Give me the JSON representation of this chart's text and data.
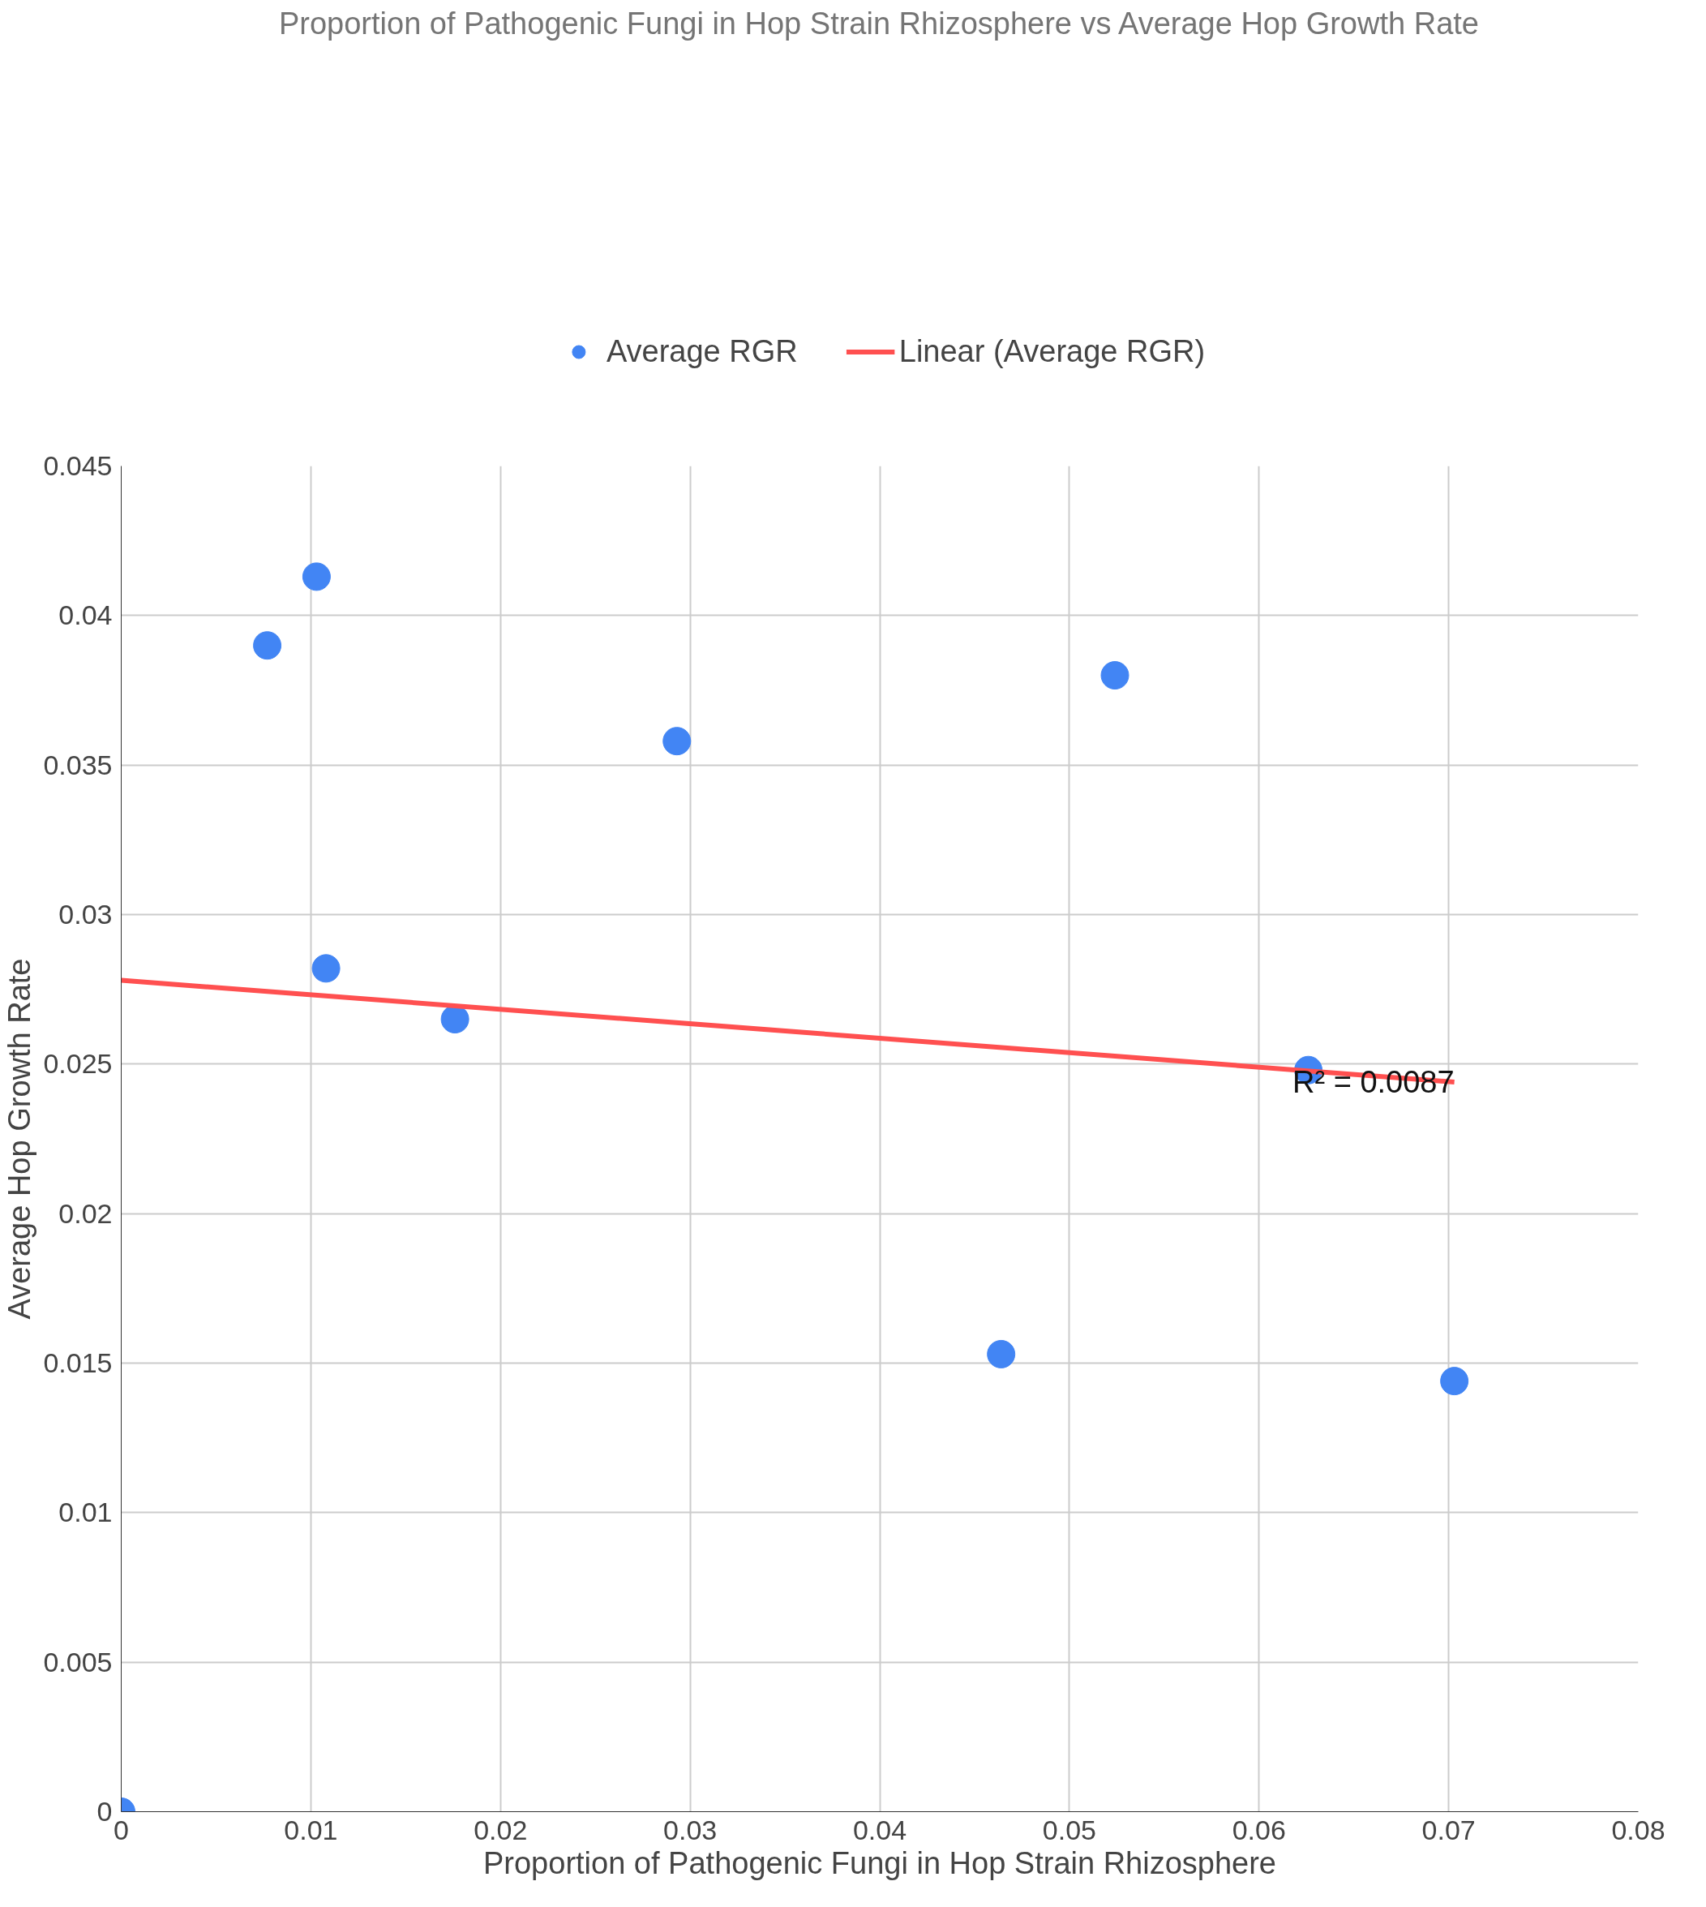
{
  "chart_data": {
    "type": "scatter",
    "title": "Proportion of Pathogenic Fungi in Hop Strain Rhizosphere vs Average Hop Growth Rate",
    "xlabel": "Proportion of Pathogenic Fungi in Hop Strain Rhizosphere",
    "ylabel": "Average Hop Growth Rate",
    "series": [
      {
        "name": "Average RGR",
        "color": "#4285f4",
        "marker": "circle",
        "x": [
          0,
          0.0077,
          0.0103,
          0.0108,
          0.0176,
          0.0293,
          0.0464,
          0.0524,
          0.0626,
          0.0703
        ],
        "values": [
          0,
          0.039,
          0.0413,
          0.0282,
          0.0265,
          0.0358,
          0.0153,
          0.038,
          0.0248,
          0.0144
        ]
      },
      {
        "name": "Linear (Average RGR)",
        "type": "line",
        "color": "#ff5050",
        "x": [
          0,
          0.0703
        ],
        "values": [
          0.0278,
          0.0244
        ]
      }
    ],
    "annotations": [
      "R² = 0.0087"
    ],
    "xlim": [
      0,
      0.08
    ],
    "xticks": [
      0,
      0.01,
      0.02,
      0.03,
      0.04,
      0.05,
      0.06,
      0.07,
      0.08
    ],
    "ylim": [
      0,
      0.045
    ],
    "yticks": [
      0,
      0.005,
      0.01,
      0.015,
      0.02,
      0.025,
      0.03,
      0.035,
      0.04,
      0.045
    ],
    "grid": true,
    "legend": "top"
  }
}
